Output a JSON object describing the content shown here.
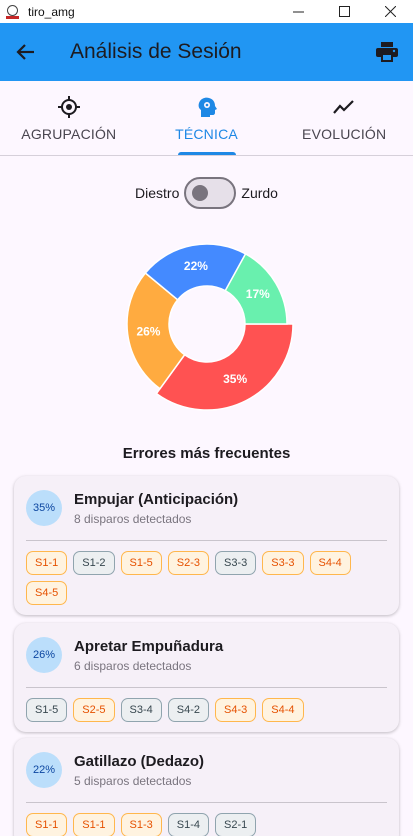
{
  "window": {
    "title": "tiro_amg"
  },
  "appbar": {
    "title": "Análisis de Sesión"
  },
  "tabs": [
    {
      "label": "AGRUPACIÓN",
      "icon": "crosshair-icon",
      "active": false
    },
    {
      "label": "TÉCNICA",
      "icon": "psychology-head-icon",
      "active": true
    },
    {
      "label": "EVOLUCIÓN",
      "icon": "trending-line-icon",
      "active": false
    }
  ],
  "handedness": {
    "left_label": "Diestro",
    "right_label": "Zurdo",
    "on": false
  },
  "chart_data": {
    "type": "pie",
    "donut": true,
    "slices": [
      {
        "label": "35%",
        "value": 35,
        "color": "#ff5252"
      },
      {
        "label": "26%",
        "value": 26,
        "color": "#ffab40"
      },
      {
        "label": "22%",
        "value": 22,
        "color": "#448aff"
      },
      {
        "label": "17%",
        "value": 17,
        "color": "#69f0ae"
      }
    ]
  },
  "errors_title": "Errores más frecuentes",
  "errors": [
    {
      "pct": "35%",
      "name": "Empujar (Anticipación)",
      "detail": "8 disparos detectados",
      "chips": [
        {
          "label": "S1-1",
          "kind": "warn"
        },
        {
          "label": "S1-2",
          "kind": "neutral"
        },
        {
          "label": "S1-5",
          "kind": "warn"
        },
        {
          "label": "S2-3",
          "kind": "warn"
        },
        {
          "label": "S3-3",
          "kind": "neutral"
        },
        {
          "label": "S3-3",
          "kind": "warn"
        },
        {
          "label": "S4-4",
          "kind": "warn"
        },
        {
          "label": "S4-5",
          "kind": "warn"
        }
      ]
    },
    {
      "pct": "26%",
      "name": "Apretar Empuñadura",
      "detail": "6 disparos detectados",
      "chips": [
        {
          "label": "S1-5",
          "kind": "neutral"
        },
        {
          "label": "S2-5",
          "kind": "warn"
        },
        {
          "label": "S3-4",
          "kind": "neutral"
        },
        {
          "label": "S4-2",
          "kind": "neutral"
        },
        {
          "label": "S4-3",
          "kind": "warn"
        },
        {
          "label": "S4-4",
          "kind": "warn"
        }
      ]
    },
    {
      "pct": "22%",
      "name": "Gatillazo (Dedazo)",
      "detail": "5 disparos detectados",
      "chips": [
        {
          "label": "S1-1",
          "kind": "warn"
        },
        {
          "label": "S1-1",
          "kind": "warn"
        },
        {
          "label": "S1-3",
          "kind": "warn"
        },
        {
          "label": "S1-4",
          "kind": "neutral"
        },
        {
          "label": "S2-1",
          "kind": "neutral"
        }
      ]
    }
  ]
}
